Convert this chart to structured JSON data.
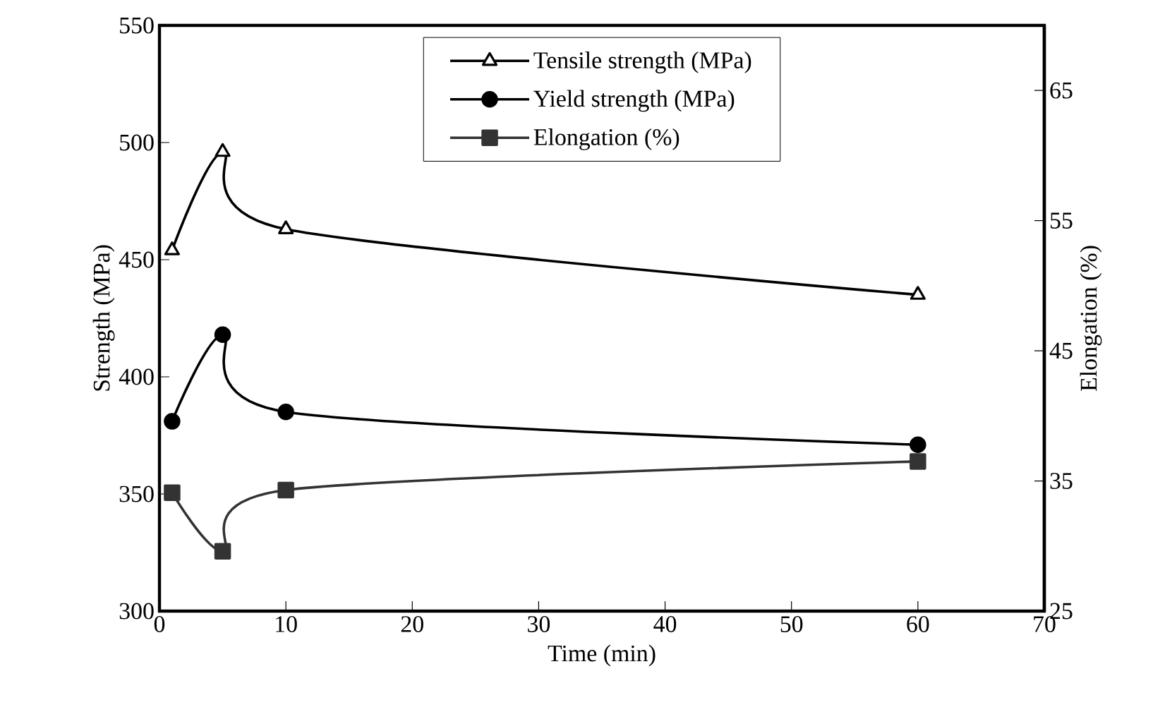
{
  "chart_data": {
    "type": "line",
    "xlabel": "Time (min)",
    "ylabel": "Strength (MPa)",
    "y2label": "Elongation (%)",
    "x": [
      1,
      5,
      10,
      60
    ],
    "xlim": [
      0,
      70
    ],
    "xticks": [
      0,
      10,
      20,
      30,
      40,
      50,
      60,
      70
    ],
    "ylim": [
      300,
      550
    ],
    "yticks": [
      300,
      350,
      400,
      450,
      500,
      550
    ],
    "y2lim": [
      25,
      70
    ],
    "y2ticks": [
      25,
      35,
      45,
      55,
      65
    ],
    "legend": "top",
    "grid": false,
    "line_style": "solid",
    "series": [
      {
        "name": "Tensile strength (MPa)",
        "color": "#000000",
        "marker": "triangle",
        "values": [
          454,
          496,
          463,
          435
        ]
      },
      {
        "name": "Yield strength (MPa)",
        "color": "#000000",
        "marker": "circle",
        "values": [
          381,
          418,
          385,
          371
        ]
      },
      {
        "name": "Elongation (%)",
        "color": "#333333",
        "marker": "square",
        "axis": "y2",
        "values": [
          34.1,
          29.6,
          34.3,
          36.5
        ]
      }
    ]
  }
}
